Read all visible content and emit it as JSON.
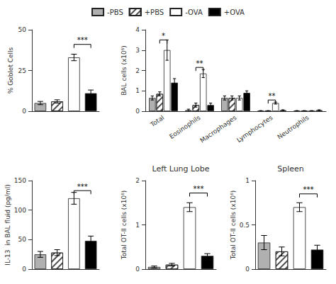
{
  "chart_data": [
    {
      "type": "bar",
      "categories": [
        "-PBS",
        "+PBS",
        "-OVA",
        "+OVA"
      ],
      "values": [
        5,
        6,
        33,
        11
      ],
      "errors": [
        1,
        1,
        2,
        2
      ],
      "colors": [
        "#b0b0b0",
        "white",
        "white",
        "#000000"
      ],
      "ylabel": "% Goblet Cells",
      "ylim": [
        0,
        50
      ],
      "yticks": [
        0,
        25,
        50
      ],
      "grid": false,
      "tick_labels": "y",
      "annotations": [
        {
          "text": "***",
          "from": "-OVA",
          "to": "+OVA",
          "y": 41
        }
      ]
    },
    {
      "type": "bar",
      "categories": [
        "Total",
        "Eosinophils",
        "Macrophages",
        "Lymphocytes",
        "Neutrophils"
      ],
      "series": [
        {
          "name": "-PBS",
          "color": "#b0b0b0",
          "values": [
            0.65,
            0.05,
            0.65,
            0.02,
            0.02
          ],
          "errors": [
            0.1,
            0.05,
            0.1,
            0.01,
            0.01
          ]
        },
        {
          "name": "+PBS",
          "color": "white",
          "values": [
            0.85,
            0.3,
            0.65,
            0.02,
            0.02
          ],
          "errors": [
            0.1,
            0.1,
            0.1,
            0.01,
            0.01
          ]
        },
        {
          "name": "-OVA",
          "color": "white",
          "values": [
            3.0,
            1.85,
            0.65,
            0.4,
            0.02
          ],
          "errors": [
            0.5,
            0.2,
            0.1,
            0.05,
            0.01
          ]
        },
        {
          "name": "+OVA",
          "color": "#000000",
          "values": [
            1.4,
            0.3,
            0.9,
            0.05,
            0.05
          ],
          "errors": [
            0.2,
            0.1,
            0.1,
            0.02,
            0.02
          ]
        }
      ],
      "ylabel": "BAL cells (x10⁶)",
      "ylim": [
        0,
        4
      ],
      "yticks": [
        0,
        1,
        2,
        3,
        4
      ],
      "grid": false,
      "legend": "top",
      "annotations": [
        {
          "text": "*",
          "group": "Total",
          "from": "+PBS",
          "to": "-OVA",
          "y": 3.5
        },
        {
          "text": "**",
          "group": "Eosinophils",
          "from": "+PBS",
          "to": "-OVA",
          "y": 2.15
        },
        {
          "text": "**",
          "group": "Lymphocytes",
          "from": "+PBS",
          "to": "-OVA",
          "y": 0.55
        }
      ]
    },
    {
      "type": "bar",
      "categories": [
        "-PBS",
        "+PBS",
        "-OVA",
        "+OVA"
      ],
      "values": [
        25,
        28,
        120,
        48
      ],
      "errors": [
        5,
        5,
        10,
        8
      ],
      "colors": [
        "#b0b0b0",
        "white",
        "white",
        "#000000"
      ],
      "ylabel": "IL-13  in BAL fluid (pg/ml)",
      "ylim": [
        0,
        150
      ],
      "yticks": [
        0,
        50,
        100,
        150
      ],
      "grid": false,
      "tick_labels": "y",
      "annotations": [
        {
          "text": "***",
          "from": "-OVA",
          "to": "+OVA",
          "y": 133
        }
      ]
    },
    {
      "type": "bar",
      "title": "Left Lung Lobe",
      "categories": [
        "-PBS",
        "+PBS",
        "-OVA",
        "+OVA"
      ],
      "values": [
        0.05,
        0.1,
        1.4,
        0.3
      ],
      "errors": [
        0.02,
        0.03,
        0.1,
        0.05
      ],
      "colors": [
        "#b0b0b0",
        "white",
        "white",
        "#000000"
      ],
      "ylabel": "Total OT-II cells (x10⁶)",
      "ylim": [
        0,
        2
      ],
      "yticks": [
        0,
        1,
        2
      ],
      "grid": false,
      "tick_labels": "y",
      "annotations": [
        {
          "text": "***",
          "from": "-OVA",
          "to": "+OVA",
          "y": 1.72
        }
      ]
    },
    {
      "type": "bar",
      "title": "Spleen",
      "categories": [
        "-PBS",
        "+PBS",
        "-OVA",
        "+OVA"
      ],
      "values": [
        0.3,
        0.2,
        0.7,
        0.22
      ],
      "errors": [
        0.08,
        0.05,
        0.05,
        0.05
      ],
      "colors": [
        "#b0b0b0",
        "white",
        "white",
        "#000000"
      ],
      "ylabel": "Total OT-II cells (x10⁶)",
      "ylim": [
        0,
        1
      ],
      "yticks": [
        0,
        0.5,
        1
      ],
      "grid": false,
      "tick_labels": "y",
      "annotations": [
        {
          "text": "***",
          "from": "-OVA",
          "to": "+OVA",
          "y": 0.85
        }
      ]
    }
  ]
}
